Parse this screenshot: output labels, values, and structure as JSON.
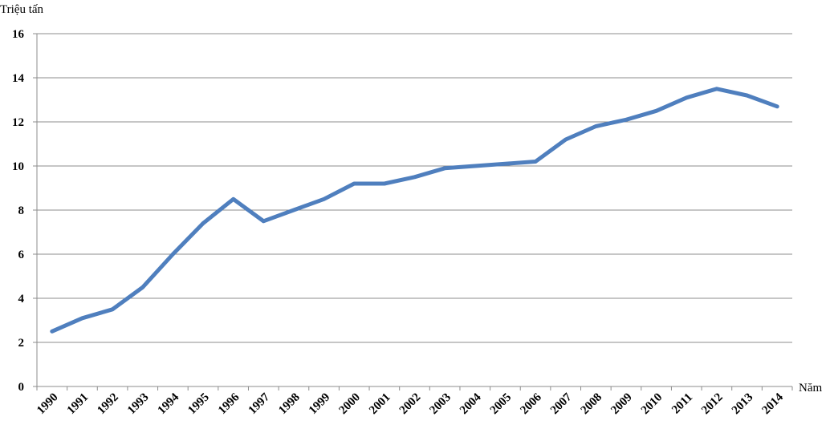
{
  "chart_data": {
    "type": "line",
    "ylabel": "Triệu tấn",
    "xlabel": "Năm",
    "ylim": [
      0,
      16
    ],
    "yticks": [
      0,
      2,
      4,
      6,
      8,
      10,
      12,
      14,
      16
    ],
    "categories": [
      "1990",
      "1991",
      "1992",
      "1993",
      "1994",
      "1995",
      "1996",
      "1997",
      "1998",
      "1999",
      "2000",
      "2001",
      "2002",
      "2003",
      "2004",
      "2005",
      "2006",
      "2007",
      "2008",
      "2009",
      "2010",
      "2011",
      "2012",
      "2013",
      "2014"
    ],
    "series": [
      {
        "values": [
          2.5,
          3.1,
          3.5,
          4.5,
          6.0,
          7.4,
          8.5,
          7.5,
          8.0,
          8.5,
          9.2,
          9.2,
          9.5,
          9.9,
          10.0,
          10.1,
          10.2,
          11.2,
          11.8,
          12.1,
          12.5,
          13.1,
          13.5,
          13.2,
          12.7
        ],
        "color": "#4f7fbe"
      }
    ],
    "grid": true
  }
}
